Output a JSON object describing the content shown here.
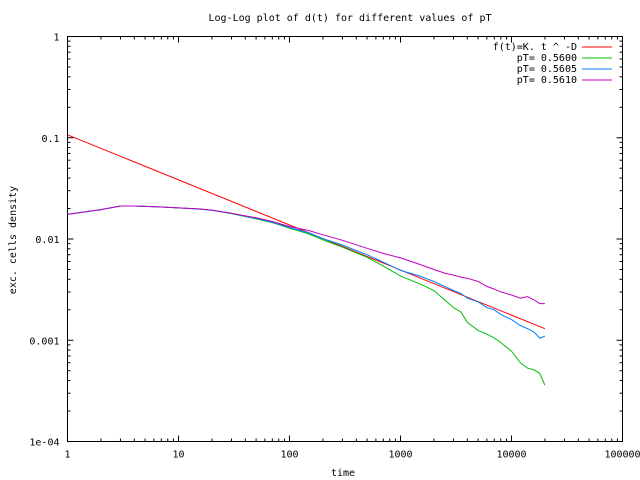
{
  "chart_data": {
    "type": "line",
    "title": "Log-Log plot of d(t) for different values of pT",
    "xlabel": "time",
    "ylabel": "exc. cells density",
    "xscale": "log",
    "yscale": "log",
    "xlim": [
      1,
      100000
    ],
    "ylim": [
      0.0001,
      1
    ],
    "grid": false,
    "legend_position": "top-right",
    "x_ticks": [
      {
        "value": 1,
        "label": "1"
      },
      {
        "value": 10,
        "label": "10"
      },
      {
        "value": 100,
        "label": "100"
      },
      {
        "value": 1000,
        "label": "1000"
      },
      {
        "value": 10000,
        "label": "10000"
      },
      {
        "value": 100000,
        "label": "100000"
      }
    ],
    "y_ticks": [
      {
        "value": 0.0001,
        "label": "1e-04"
      },
      {
        "value": 0.001,
        "label": "0.001"
      },
      {
        "value": 0.01,
        "label": "0.01"
      },
      {
        "value": 0.1,
        "label": "0.1"
      },
      {
        "value": 1,
        "label": "1"
      }
    ],
    "series": [
      {
        "name": "f(t)=K. t ^ -D",
        "color": "#ff0000",
        "x": [
          1,
          20000
        ],
        "y": [
          0.107,
          0.0013
        ]
      },
      {
        "name": "pT= 0.5600",
        "color": "#00c000",
        "x": [
          1,
          2,
          3,
          4,
          5,
          7,
          10,
          15,
          20,
          30,
          50,
          70,
          100,
          150,
          200,
          300,
          500,
          700,
          1000,
          1500,
          2000,
          2500,
          3000,
          3500,
          4000,
          5000,
          6000,
          7000,
          8000,
          10000,
          12000,
          14000,
          16000,
          18000,
          20000
        ],
        "y": [
          0.0175,
          0.0195,
          0.0212,
          0.0212,
          0.021,
          0.0207,
          0.0203,
          0.0198,
          0.0192,
          0.0178,
          0.0158,
          0.0145,
          0.0128,
          0.0112,
          0.0098,
          0.0083,
          0.0066,
          0.0054,
          0.0043,
          0.0036,
          0.0031,
          0.0025,
          0.0021,
          0.0019,
          0.0015,
          0.00125,
          0.00115,
          0.00105,
          0.00095,
          0.00078,
          0.0006,
          0.00053,
          0.00051,
          0.00047,
          0.00036
        ]
      },
      {
        "name": "pT= 0.5605",
        "color": "#0080ff",
        "x": [
          1,
          2,
          3,
          4,
          5,
          7,
          10,
          15,
          20,
          30,
          50,
          70,
          100,
          150,
          200,
          300,
          500,
          700,
          1000,
          1500,
          2000,
          2500,
          3000,
          3500,
          4000,
          5000,
          6000,
          7000,
          8000,
          10000,
          12000,
          14000,
          16000,
          18000,
          20000
        ],
        "y": [
          0.0175,
          0.0195,
          0.0212,
          0.0212,
          0.021,
          0.0207,
          0.0203,
          0.0198,
          0.0192,
          0.0179,
          0.016,
          0.0147,
          0.013,
          0.0115,
          0.0101,
          0.0087,
          0.007,
          0.0059,
          0.0049,
          0.0043,
          0.0038,
          0.0034,
          0.0031,
          0.0029,
          0.0026,
          0.0024,
          0.0021,
          0.002,
          0.0018,
          0.0016,
          0.0014,
          0.0013,
          0.0012,
          0.00105,
          0.0011
        ]
      },
      {
        "name": "pT= 0.5610",
        "color": "#c000c0",
        "x": [
          1,
          2,
          3,
          4,
          5,
          7,
          10,
          15,
          20,
          30,
          50,
          70,
          100,
          150,
          200,
          300,
          500,
          700,
          1000,
          1500,
          2000,
          2500,
          3000,
          3500,
          4000,
          5000,
          6000,
          7000,
          8000,
          10000,
          12000,
          14000,
          16000,
          18000,
          20000
        ],
        "y": [
          0.0175,
          0.0195,
          0.0212,
          0.0212,
          0.021,
          0.0207,
          0.0203,
          0.0199,
          0.0193,
          0.018,
          0.0162,
          0.0149,
          0.0133,
          0.0121,
          0.011,
          0.0097,
          0.0081,
          0.0072,
          0.0065,
          0.0056,
          0.005,
          0.0046,
          0.0044,
          0.0042,
          0.0041,
          0.0038,
          0.0034,
          0.0032,
          0.003,
          0.0028,
          0.0026,
          0.0027,
          0.0025,
          0.0023,
          0.0023
        ]
      }
    ]
  }
}
